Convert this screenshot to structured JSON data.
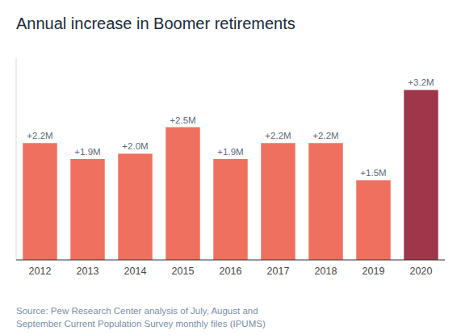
{
  "chart_data": {
    "type": "bar",
    "title": "Annual increase in Boomer retirements",
    "categories": [
      "2012",
      "2013",
      "2014",
      "2015",
      "2016",
      "2017",
      "2018",
      "2019",
      "2020"
    ],
    "values": [
      2.2,
      1.9,
      2.0,
      2.5,
      1.9,
      2.2,
      2.2,
      1.5,
      3.2
    ],
    "value_labels": [
      "+2.2M",
      "+1.9M",
      "+2.0M",
      "+2.5M",
      "+1.9M",
      "+2.2M",
      "+2.2M",
      "+1.5M",
      "+3.2M"
    ],
    "colors": [
      "#F07060",
      "#F07060",
      "#F07060",
      "#F07060",
      "#F07060",
      "#F07060",
      "#F07060",
      "#F07060",
      "#A0364A"
    ],
    "ylim": [
      0,
      3.8
    ],
    "data_labels": true,
    "tick_labels": "x",
    "grid": false,
    "annotations": [
      "Source: Pew Research Center analysis of July, August and",
      "September Current Population Survey monthly files (IPUMS)"
    ]
  }
}
